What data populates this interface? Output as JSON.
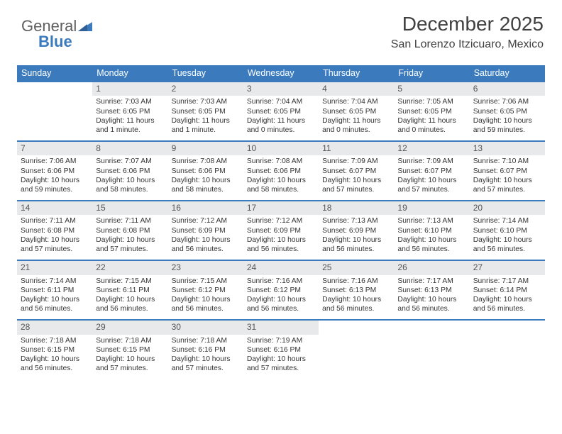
{
  "logo": {
    "general": "General",
    "blue": "Blue"
  },
  "title": "December 2025",
  "subtitle": "San Lorenzo Itzicuaro, Mexico",
  "colors": {
    "accent": "#3a7abd",
    "dayHeaderBg": "#e7e9eb",
    "text": "#333333",
    "logoGray": "#606060"
  },
  "typography": {
    "title_fontsize": 28,
    "subtitle_fontsize": 16,
    "dow_fontsize": 12.5,
    "daynum_fontsize": 12,
    "body_fontsize": 10.3
  },
  "daysOfWeek": [
    "Sunday",
    "Monday",
    "Tuesday",
    "Wednesday",
    "Thursday",
    "Friday",
    "Saturday"
  ],
  "weeks": [
    [
      null,
      {
        "n": "1",
        "sr": "Sunrise: 7:03 AM",
        "ss": "Sunset: 6:05 PM",
        "dl": "Daylight: 11 hours and 1 minute."
      },
      {
        "n": "2",
        "sr": "Sunrise: 7:03 AM",
        "ss": "Sunset: 6:05 PM",
        "dl": "Daylight: 11 hours and 1 minute."
      },
      {
        "n": "3",
        "sr": "Sunrise: 7:04 AM",
        "ss": "Sunset: 6:05 PM",
        "dl": "Daylight: 11 hours and 0 minutes."
      },
      {
        "n": "4",
        "sr": "Sunrise: 7:04 AM",
        "ss": "Sunset: 6:05 PM",
        "dl": "Daylight: 11 hours and 0 minutes."
      },
      {
        "n": "5",
        "sr": "Sunrise: 7:05 AM",
        "ss": "Sunset: 6:05 PM",
        "dl": "Daylight: 11 hours and 0 minutes."
      },
      {
        "n": "6",
        "sr": "Sunrise: 7:06 AM",
        "ss": "Sunset: 6:05 PM",
        "dl": "Daylight: 10 hours and 59 minutes."
      }
    ],
    [
      {
        "n": "7",
        "sr": "Sunrise: 7:06 AM",
        "ss": "Sunset: 6:06 PM",
        "dl": "Daylight: 10 hours and 59 minutes."
      },
      {
        "n": "8",
        "sr": "Sunrise: 7:07 AM",
        "ss": "Sunset: 6:06 PM",
        "dl": "Daylight: 10 hours and 58 minutes."
      },
      {
        "n": "9",
        "sr": "Sunrise: 7:08 AM",
        "ss": "Sunset: 6:06 PM",
        "dl": "Daylight: 10 hours and 58 minutes."
      },
      {
        "n": "10",
        "sr": "Sunrise: 7:08 AM",
        "ss": "Sunset: 6:06 PM",
        "dl": "Daylight: 10 hours and 58 minutes."
      },
      {
        "n": "11",
        "sr": "Sunrise: 7:09 AM",
        "ss": "Sunset: 6:07 PM",
        "dl": "Daylight: 10 hours and 57 minutes."
      },
      {
        "n": "12",
        "sr": "Sunrise: 7:09 AM",
        "ss": "Sunset: 6:07 PM",
        "dl": "Daylight: 10 hours and 57 minutes."
      },
      {
        "n": "13",
        "sr": "Sunrise: 7:10 AM",
        "ss": "Sunset: 6:07 PM",
        "dl": "Daylight: 10 hours and 57 minutes."
      }
    ],
    [
      {
        "n": "14",
        "sr": "Sunrise: 7:11 AM",
        "ss": "Sunset: 6:08 PM",
        "dl": "Daylight: 10 hours and 57 minutes."
      },
      {
        "n": "15",
        "sr": "Sunrise: 7:11 AM",
        "ss": "Sunset: 6:08 PM",
        "dl": "Daylight: 10 hours and 57 minutes."
      },
      {
        "n": "16",
        "sr": "Sunrise: 7:12 AM",
        "ss": "Sunset: 6:09 PM",
        "dl": "Daylight: 10 hours and 56 minutes."
      },
      {
        "n": "17",
        "sr": "Sunrise: 7:12 AM",
        "ss": "Sunset: 6:09 PM",
        "dl": "Daylight: 10 hours and 56 minutes."
      },
      {
        "n": "18",
        "sr": "Sunrise: 7:13 AM",
        "ss": "Sunset: 6:09 PM",
        "dl": "Daylight: 10 hours and 56 minutes."
      },
      {
        "n": "19",
        "sr": "Sunrise: 7:13 AM",
        "ss": "Sunset: 6:10 PM",
        "dl": "Daylight: 10 hours and 56 minutes."
      },
      {
        "n": "20",
        "sr": "Sunrise: 7:14 AM",
        "ss": "Sunset: 6:10 PM",
        "dl": "Daylight: 10 hours and 56 minutes."
      }
    ],
    [
      {
        "n": "21",
        "sr": "Sunrise: 7:14 AM",
        "ss": "Sunset: 6:11 PM",
        "dl": "Daylight: 10 hours and 56 minutes."
      },
      {
        "n": "22",
        "sr": "Sunrise: 7:15 AM",
        "ss": "Sunset: 6:11 PM",
        "dl": "Daylight: 10 hours and 56 minutes."
      },
      {
        "n": "23",
        "sr": "Sunrise: 7:15 AM",
        "ss": "Sunset: 6:12 PM",
        "dl": "Daylight: 10 hours and 56 minutes."
      },
      {
        "n": "24",
        "sr": "Sunrise: 7:16 AM",
        "ss": "Sunset: 6:12 PM",
        "dl": "Daylight: 10 hours and 56 minutes."
      },
      {
        "n": "25",
        "sr": "Sunrise: 7:16 AM",
        "ss": "Sunset: 6:13 PM",
        "dl": "Daylight: 10 hours and 56 minutes."
      },
      {
        "n": "26",
        "sr": "Sunrise: 7:17 AM",
        "ss": "Sunset: 6:13 PM",
        "dl": "Daylight: 10 hours and 56 minutes."
      },
      {
        "n": "27",
        "sr": "Sunrise: 7:17 AM",
        "ss": "Sunset: 6:14 PM",
        "dl": "Daylight: 10 hours and 56 minutes."
      }
    ],
    [
      {
        "n": "28",
        "sr": "Sunrise: 7:18 AM",
        "ss": "Sunset: 6:15 PM",
        "dl": "Daylight: 10 hours and 56 minutes."
      },
      {
        "n": "29",
        "sr": "Sunrise: 7:18 AM",
        "ss": "Sunset: 6:15 PM",
        "dl": "Daylight: 10 hours and 57 minutes."
      },
      {
        "n": "30",
        "sr": "Sunrise: 7:18 AM",
        "ss": "Sunset: 6:16 PM",
        "dl": "Daylight: 10 hours and 57 minutes."
      },
      {
        "n": "31",
        "sr": "Sunrise: 7:19 AM",
        "ss": "Sunset: 6:16 PM",
        "dl": "Daylight: 10 hours and 57 minutes."
      },
      null,
      null,
      null
    ]
  ]
}
